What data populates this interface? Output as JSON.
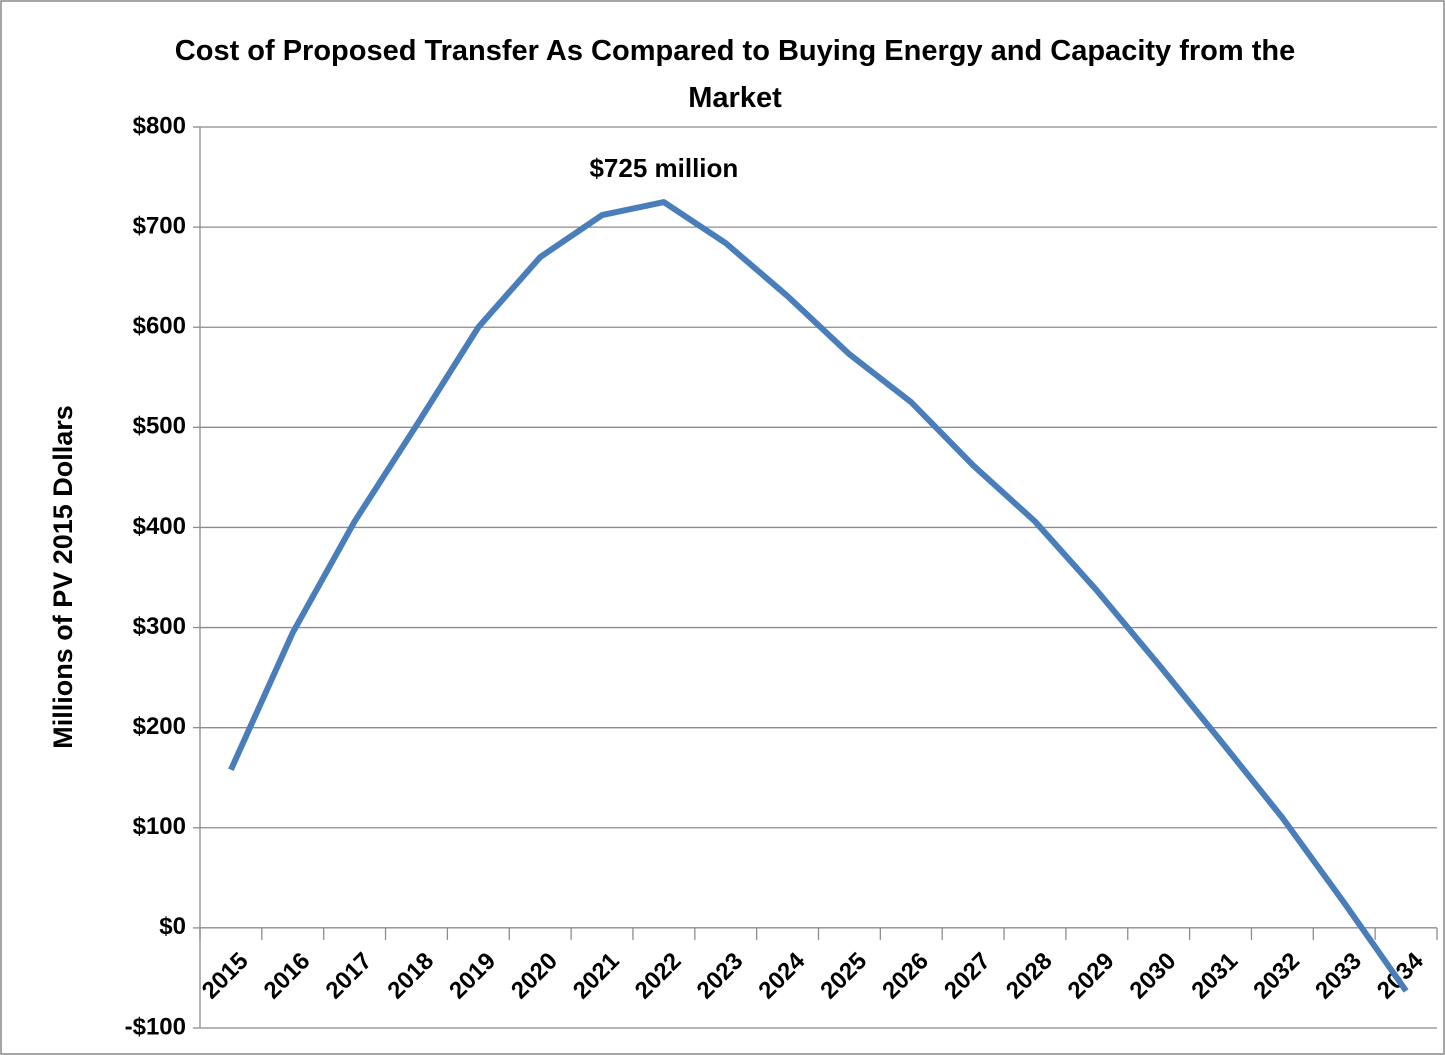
{
  "chart_data": {
    "type": "line",
    "title": "Cost of Proposed Transfer As Compared to Buying Energy and Capacity from the Market",
    "y_axis_label": "Millions of PV 2015 Dollars",
    "annotation": "$725 million",
    "categories": [
      "2015",
      "2016",
      "2017",
      "2018",
      "2019",
      "2020",
      "2021",
      "2022",
      "2023",
      "2024",
      "2025",
      "2026",
      "2027",
      "2028",
      "2029",
      "2030",
      "2031",
      "2032",
      "2033",
      "2034"
    ],
    "values": [
      158,
      295,
      406,
      502,
      600,
      670,
      712,
      725,
      684,
      631,
      573,
      525,
      462,
      406,
      337,
      263,
      187,
      110,
      25,
      -63
    ],
    "color": "#4a7ebb",
    "ylim": [
      -100,
      800
    ],
    "yticks": [
      {
        "value": -100,
        "label": "-$100"
      },
      {
        "value": 0,
        "label": "$0"
      },
      {
        "value": 100,
        "label": "$100"
      },
      {
        "value": 200,
        "label": "$200"
      },
      {
        "value": 300,
        "label": "$300"
      },
      {
        "value": 400,
        "label": "$400"
      },
      {
        "value": 500,
        "label": "$500"
      },
      {
        "value": 600,
        "label": "$600"
      },
      {
        "value": 700,
        "label": "$700"
      },
      {
        "value": 800,
        "label": "$800"
      }
    ],
    "grid": true
  }
}
